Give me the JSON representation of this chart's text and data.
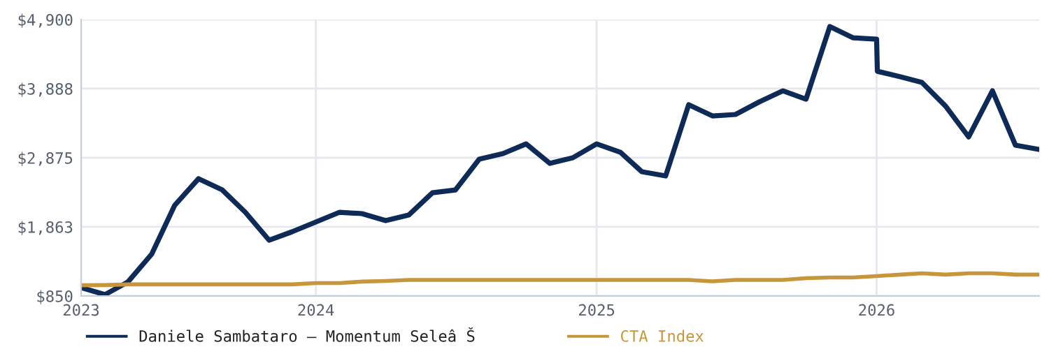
{
  "chart_data": {
    "type": "line",
    "x": [
      "2023-03-01",
      "2023-04-01",
      "2023-05-01",
      "2023-06-01",
      "2023-07-01",
      "2023-08-01",
      "2023-09-01",
      "2023-10-01",
      "2023-11-01",
      "2023-12-01",
      "2024-01-01",
      "2024-02-01",
      "2024-03-01",
      "2024-04-01",
      "2024-05-01",
      "2024-06-01",
      "2024-07-01",
      "2024-08-01",
      "2024-09-01",
      "2024-10-01",
      "2024-11-01",
      "2024-12-01",
      "2025-01-01",
      "2025-02-01",
      "2025-03-01",
      "2025-04-01",
      "2025-05-01",
      "2025-06-01",
      "2025-07-01",
      "2025-08-01",
      "2025-09-01",
      "2025-10-01",
      "2025-11-01",
      "2025-12-01",
      "2026-01-01",
      "2026-01-02",
      "2026-02-01",
      "2026-03-01",
      "2026-04-01",
      "2026-05-01",
      "2026-06-01",
      "2026-07-01",
      "2026-08-01"
    ],
    "series": [
      {
        "name": "Daniele Sambataro – Momentum Seleâ Š",
        "color": "#0d2b56",
        "values": [
          973,
          870,
          1055,
          1464,
          2179,
          2568,
          2404,
          2077,
          1668,
          1791,
          1934,
          2077,
          2057,
          1954,
          2036,
          2363,
          2404,
          2854,
          2936,
          3079,
          2793,
          2875,
          3079,
          2956,
          2670,
          2609,
          3652,
          3488,
          3509,
          3693,
          3856,
          3733,
          4797,
          4633,
          4613,
          4142,
          4061,
          3979,
          3631,
          3181,
          3856,
          3059,
          2997
        ]
      },
      {
        "name": "CTA Index",
        "color": "#c8963a",
        "x": [
          "2023-03-01",
          "2023-04-01",
          "2023-05-01",
          "2023-06-01",
          "2023-07-01",
          "2023-08-01",
          "2023-09-01",
          "2023-10-01",
          "2023-11-01",
          "2023-12-01",
          "2024-01-01",
          "2024-02-01",
          "2024-03-01",
          "2024-04-01",
          "2024-05-01",
          "2024-06-01",
          "2024-07-01",
          "2024-08-01",
          "2024-09-01",
          "2024-10-01",
          "2024-11-01",
          "2024-12-01",
          "2025-01-01",
          "2025-02-01",
          "2025-03-01",
          "2025-04-01",
          "2025-05-01",
          "2025-06-01",
          "2025-07-01",
          "2025-08-01",
          "2025-09-01",
          "2025-10-01",
          "2025-11-01",
          "2025-12-01",
          "2026-01-01",
          "2026-02-01",
          "2026-03-01",
          "2026-04-01",
          "2026-05-01",
          "2026-06-01",
          "2026-07-01",
          "2026-08-01"
        ],
        "values": [
          1007,
          1010,
          1020,
          1020,
          1020,
          1020,
          1020,
          1020,
          1020,
          1020,
          1040,
          1040,
          1061,
          1070,
          1085,
          1085,
          1085,
          1085,
          1085,
          1085,
          1085,
          1085,
          1085,
          1085,
          1085,
          1085,
          1085,
          1065,
          1085,
          1085,
          1085,
          1110,
          1122,
          1122,
          1142,
          1163,
          1183,
          1163,
          1183,
          1183,
          1163,
          1163
        ]
      }
    ],
    "xlim": [
      "2023-03-01",
      "2026-08-01"
    ],
    "xticks": [
      {
        "value": "2023-03-01",
        "label": "2023"
      },
      "2024",
      "2025",
      "2026"
    ],
    "ylim": [
      850,
      4900
    ],
    "yticks": [
      {
        "value": 850,
        "label": "$850"
      },
      {
        "value": 1863,
        "label": "$1,863"
      },
      {
        "value": 2875,
        "label": "$2,875"
      },
      {
        "value": 3888,
        "label": "$3,888"
      },
      {
        "value": 4900,
        "label": "$4,900"
      }
    ],
    "grid": true,
    "legend": "bottom",
    "marker": "none",
    "line_style": "solid"
  }
}
